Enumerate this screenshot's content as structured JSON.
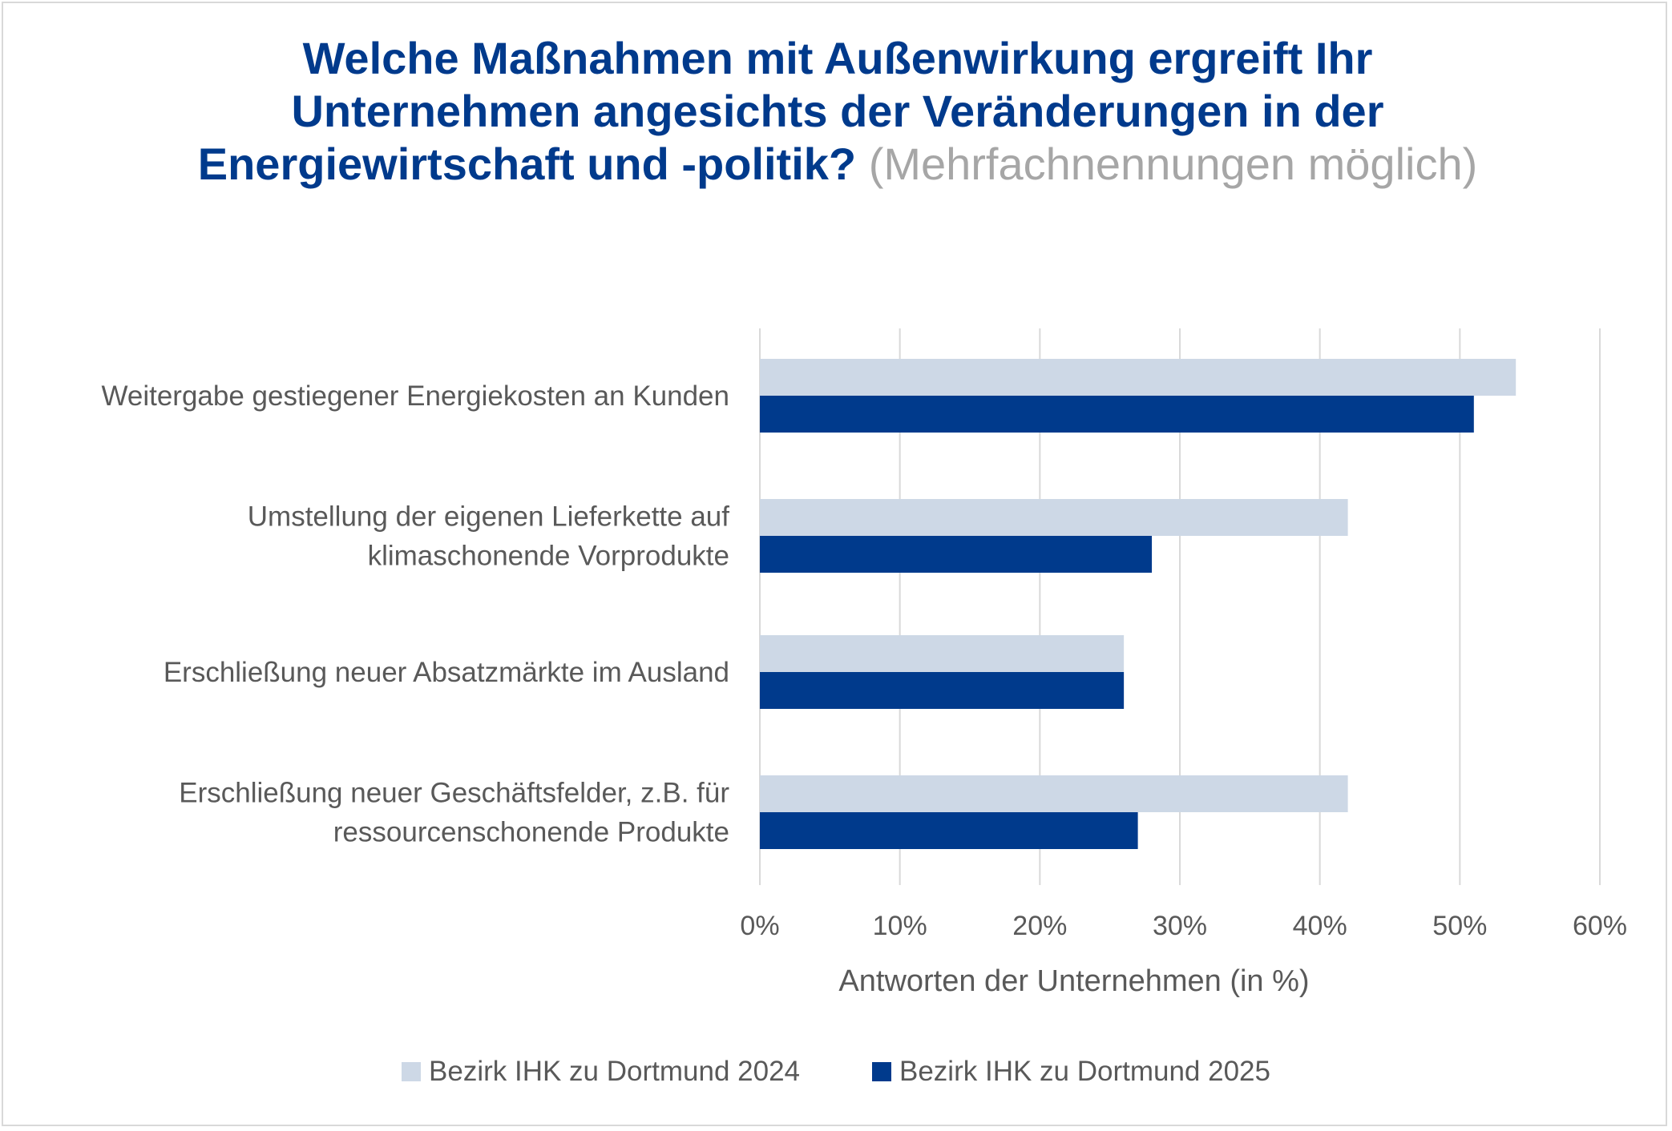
{
  "chart_data": {
    "type": "bar",
    "orientation": "horizontal",
    "title": "Welche Maßnahmen mit Außenwirkung ergreift Ihr Unternehmen angesichts der Veränderungen in der Energiewirtschaft und -politik?",
    "subtitle": "(Mehrfachnennungen möglich)",
    "xlabel": "Antworten der Unternehmen (in %)",
    "ylabel": "",
    "xlim": [
      0,
      60
    ],
    "xticks": [
      "0%",
      "10%",
      "20%",
      "30%",
      "40%",
      "50%",
      "60%"
    ],
    "grid": true,
    "legend_position": "bottom",
    "categories": [
      [
        "Weitergabe gestiegener Energiekosten an Kunden"
      ],
      [
        "Umstellung der eigenen Lieferkette auf",
        "klimaschonende Vorprodukte"
      ],
      [
        "Erschließung neuer Absatzmärkte im Ausland"
      ],
      [
        "Erschließung neuer Geschäftsfelder, z.B. für",
        "ressourcenschonende Produkte"
      ]
    ],
    "series": [
      {
        "name": "Bezirk IHK zu Dortmund 2024",
        "color": "#cdd8e6",
        "values": [
          54,
          42,
          26,
          42
        ]
      },
      {
        "name": "Bezirk IHK zu Dortmund 2025",
        "color": "#003a8c",
        "values": [
          51,
          28,
          26,
          27
        ]
      }
    ]
  }
}
